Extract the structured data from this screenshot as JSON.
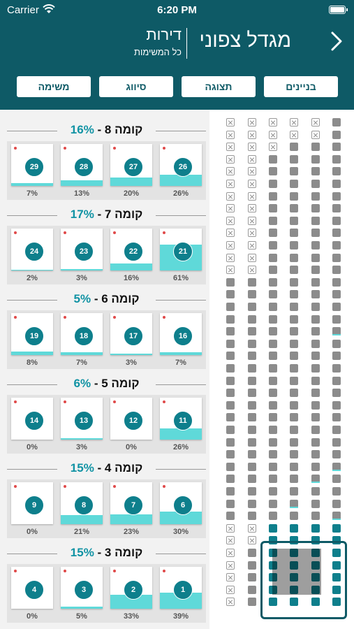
{
  "status_bar": {
    "carrier": "Carrier",
    "time": "6:20 PM"
  },
  "header": {
    "building_name": "מגדל צפוני",
    "section_title": "דירות",
    "section_subtitle": "כל המשימות",
    "back_icon": "chevron-right-icon"
  },
  "toolbar": {
    "buttons": [
      "בניינים",
      "תצוגה",
      "סיווג",
      "משימה"
    ]
  },
  "floors": [
    {
      "label": "קומה 8",
      "percent": "16%",
      "units": [
        {
          "number": "26",
          "percent": "26%",
          "fill": 0.26
        },
        {
          "number": "27",
          "percent": "20%",
          "fill": 0.2
        },
        {
          "number": "28",
          "percent": "13%",
          "fill": 0.13
        },
        {
          "number": "29",
          "percent": "7%",
          "fill": 0.07
        }
      ]
    },
    {
      "label": "קומה 7",
      "percent": "17%",
      "units": [
        {
          "number": "21",
          "percent": "61%",
          "fill": 0.61
        },
        {
          "number": "22",
          "percent": "16%",
          "fill": 0.16
        },
        {
          "number": "23",
          "percent": "3%",
          "fill": 0.03
        },
        {
          "number": "24",
          "percent": "2%",
          "fill": 0.02
        }
      ]
    },
    {
      "label": "קומה 6",
      "percent": "5%",
      "units": [
        {
          "number": "16",
          "percent": "7%",
          "fill": 0.07
        },
        {
          "number": "17",
          "percent": "3%",
          "fill": 0.03
        },
        {
          "number": "18",
          "percent": "7%",
          "fill": 0.07
        },
        {
          "number": "19",
          "percent": "8%",
          "fill": 0.08
        }
      ]
    },
    {
      "label": "קומה 5",
      "percent": "6%",
      "units": [
        {
          "number": "11",
          "percent": "26%",
          "fill": 0.26
        },
        {
          "number": "12",
          "percent": "0%",
          "fill": 0
        },
        {
          "number": "13",
          "percent": "3%",
          "fill": 0.03
        },
        {
          "number": "14",
          "percent": "0%",
          "fill": 0
        }
      ]
    },
    {
      "label": "קומה 4",
      "percent": "15%",
      "units": [
        {
          "number": "6",
          "percent": "30%",
          "fill": 0.3
        },
        {
          "number": "7",
          "percent": "23%",
          "fill": 0.23
        },
        {
          "number": "8",
          "percent": "21%",
          "fill": 0.21
        },
        {
          "number": "9",
          "percent": "0%",
          "fill": 0
        }
      ]
    },
    {
      "label": "קומה 3",
      "percent": "15%",
      "units": [
        {
          "number": "1",
          "percent": "39%",
          "fill": 0.39
        },
        {
          "number": "2",
          "percent": "33%",
          "fill": 0.33
        },
        {
          "number": "3",
          "percent": "5%",
          "fill": 0.05
        },
        {
          "number": "4",
          "percent": "0%",
          "fill": 0
        }
      ]
    }
  ],
  "minimap": {
    "columns": [
      {
        "empty_rows": [
          0,
          1,
          2,
          3,
          4,
          5,
          6,
          7,
          8,
          9,
          10,
          11,
          12
        ],
        "bottom_empty_rows": [
          0,
          1,
          2,
          3,
          4,
          5,
          6
        ]
      },
      {
        "empty_rows": [
          0,
          1,
          2,
          3,
          4,
          5,
          6,
          7,
          8,
          9,
          10,
          11,
          12
        ],
        "bottom_empty_rows": [
          0,
          1
        ]
      },
      {
        "empty_rows": [
          0,
          1,
          2
        ],
        "bottom_empty_rows": []
      },
      {
        "empty_rows": [
          0,
          1
        ],
        "bottom_empty_rows": []
      },
      {
        "empty_rows": [
          0,
          1
        ],
        "bottom_empty_rows": []
      },
      {
        "empty_rows": [],
        "bottom_empty_rows": []
      }
    ],
    "total_rows": 40,
    "colors": {
      "empty": "#ffffff",
      "occupied": "#8c8c8c",
      "active": "#0e7f8c",
      "progress": "#5fd9d9"
    }
  },
  "colors": {
    "brand": "#0e5a66",
    "accent": "#1193a4",
    "fill": "#5fd9d9",
    "dot": "#e04a4a"
  }
}
